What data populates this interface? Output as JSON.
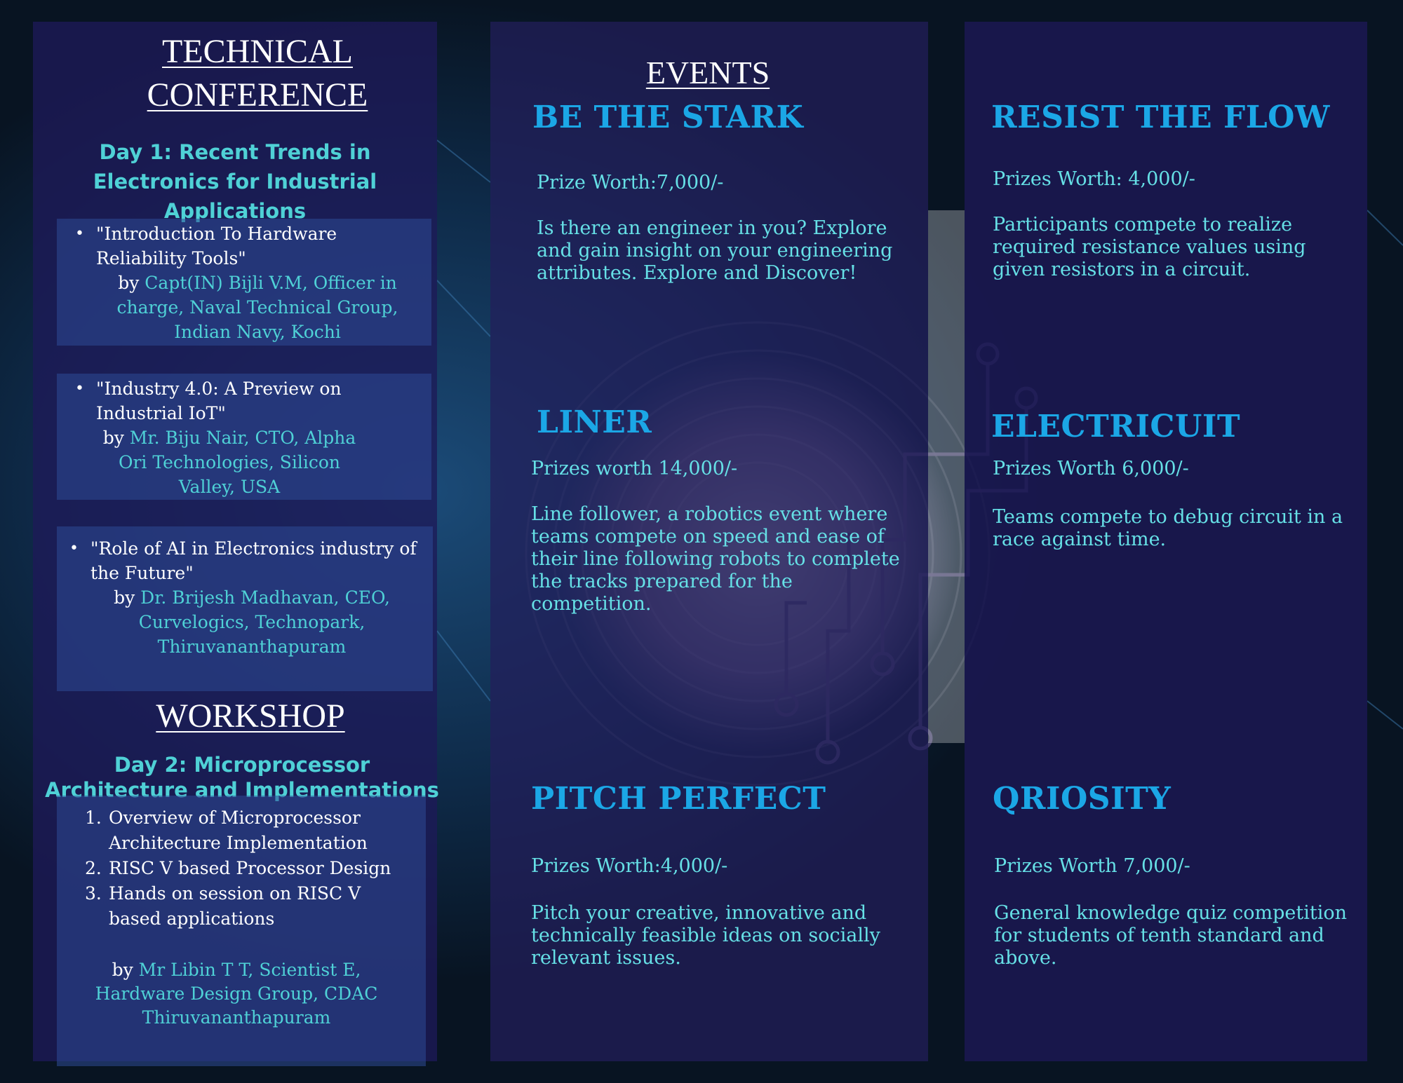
{
  "conference": {
    "title": "TECHNICAL CONFERENCE",
    "day1_title": "Day 1: Recent Trends in Electronics for Industrial Applications",
    "talks": [
      {
        "title": "\"Introduction To Hardware Reliability Tools\"",
        "by": "by",
        "speaker": "Capt(IN) Bijli V.M, Officer in charge, Naval Technical Group, Indian Navy, Kochi"
      },
      {
        "title": "\"Industry 4.0: A Preview on Industrial IoT\"",
        "by": "by",
        "speaker": "Mr. Biju Nair, CTO, Alpha Ori Technologies, Silicon Valley, USA"
      },
      {
        "title": "\"Role of AI in Electronics industry of the Future\"",
        "by": "by",
        "speaker": "Dr. Brijesh Madhavan, CEO, Curvelogics, Technopark, Thiruvananthapuram"
      }
    ]
  },
  "workshop": {
    "title": "WORKSHOP",
    "day2_title": "Day 2: Microprocessor Architecture and Implementations",
    "items": [
      {
        "num": "1.",
        "text": "Overview of Microprocessor Architecture Implementation"
      },
      {
        "num": "2.",
        "text": "RISC V based Processor Design"
      },
      {
        "num": "3.",
        "text": "Hands on session on RISC V based applications"
      }
    ],
    "by": "by",
    "speaker_line1": "Mr Libin T T, Scientist E,",
    "speaker_line2": "Hardware Design Group, CDAC",
    "speaker_line3": "Thiruvananthapuram"
  },
  "events": {
    "title": "EVENTS",
    "list": [
      {
        "name": "BE THE STARK",
        "prize": "Prize Worth:7,000/-",
        "description": "Is there an engineer in you? Explore and gain insight on your engineering attributes. Explore and Discover!"
      },
      {
        "name": "RESIST THE FLOW",
        "prize": "Prizes Worth: 4,000/-",
        "description": "Participants compete to realize required resistance values using given resistors in a circuit."
      },
      {
        "name": "LINER",
        "prize": "Prizes worth 14,000/-",
        "description": "Line follower, a robotics event where teams compete on speed and ease of their line following robots to complete the tracks prepared for the competition."
      },
      {
        "name": "ELECTRICUIT",
        "prize": "Prizes Worth 6,000/-",
        "description": "Teams compete to debug circuit in a race against time."
      },
      {
        "name": "PITCH PERFECT",
        "prize": "Prizes Worth:4,000/-",
        "description": "Pitch your creative, innovative and technically feasible ideas on socially relevant issues."
      },
      {
        "name": "QRIOSITY",
        "prize": "Prizes Worth 7,000/-",
        "description": "General knowledge quiz competition for students of tenth standard and above."
      }
    ]
  },
  "colors": {
    "accent_cyan": "#4fd1d6",
    "event_title_blue": "#1ba7e6",
    "panel_navy": "#1c1854"
  }
}
